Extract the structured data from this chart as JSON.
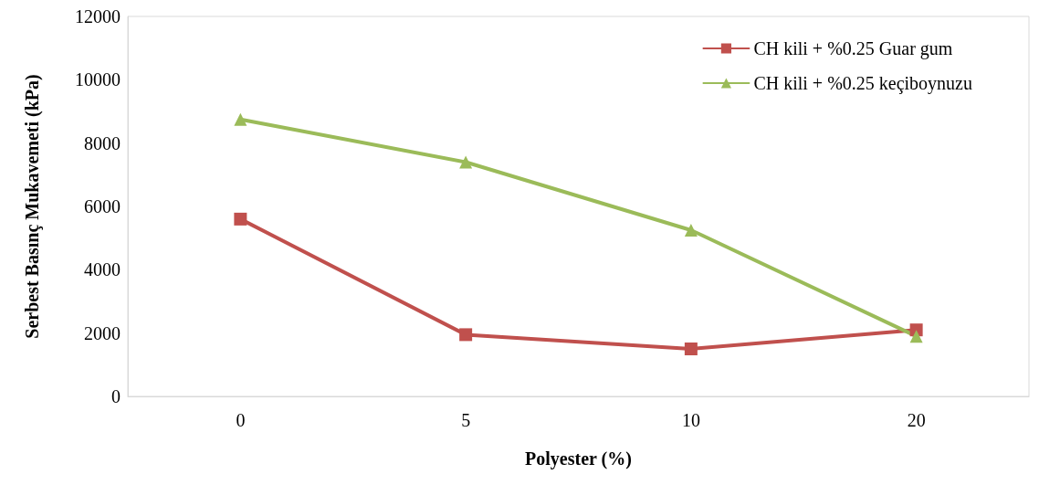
{
  "chart_data": {
    "type": "line",
    "xlabel": "Polyester (%)",
    "ylabel": "Serbest Basınç Mukavemeti (kPa)",
    "categories": [
      "0",
      "5",
      "10",
      "20"
    ],
    "series": [
      {
        "name": "CH kili + %0.25 Guar gum",
        "color": "#c0504d",
        "values": [
          5600,
          1950,
          1500,
          2100
        ],
        "marker": "square"
      },
      {
        "name": "CH kili + %0.25 keçiboynuzu",
        "color": "#9bbb59",
        "values": [
          8750,
          7400,
          5250,
          1900
        ],
        "marker": "triangle"
      }
    ],
    "ylim": [
      0,
      12000
    ],
    "yticks": [
      0,
      2000,
      4000,
      6000,
      8000,
      10000,
      12000
    ],
    "grid": false,
    "legend": "top right",
    "line_style": "solid"
  }
}
